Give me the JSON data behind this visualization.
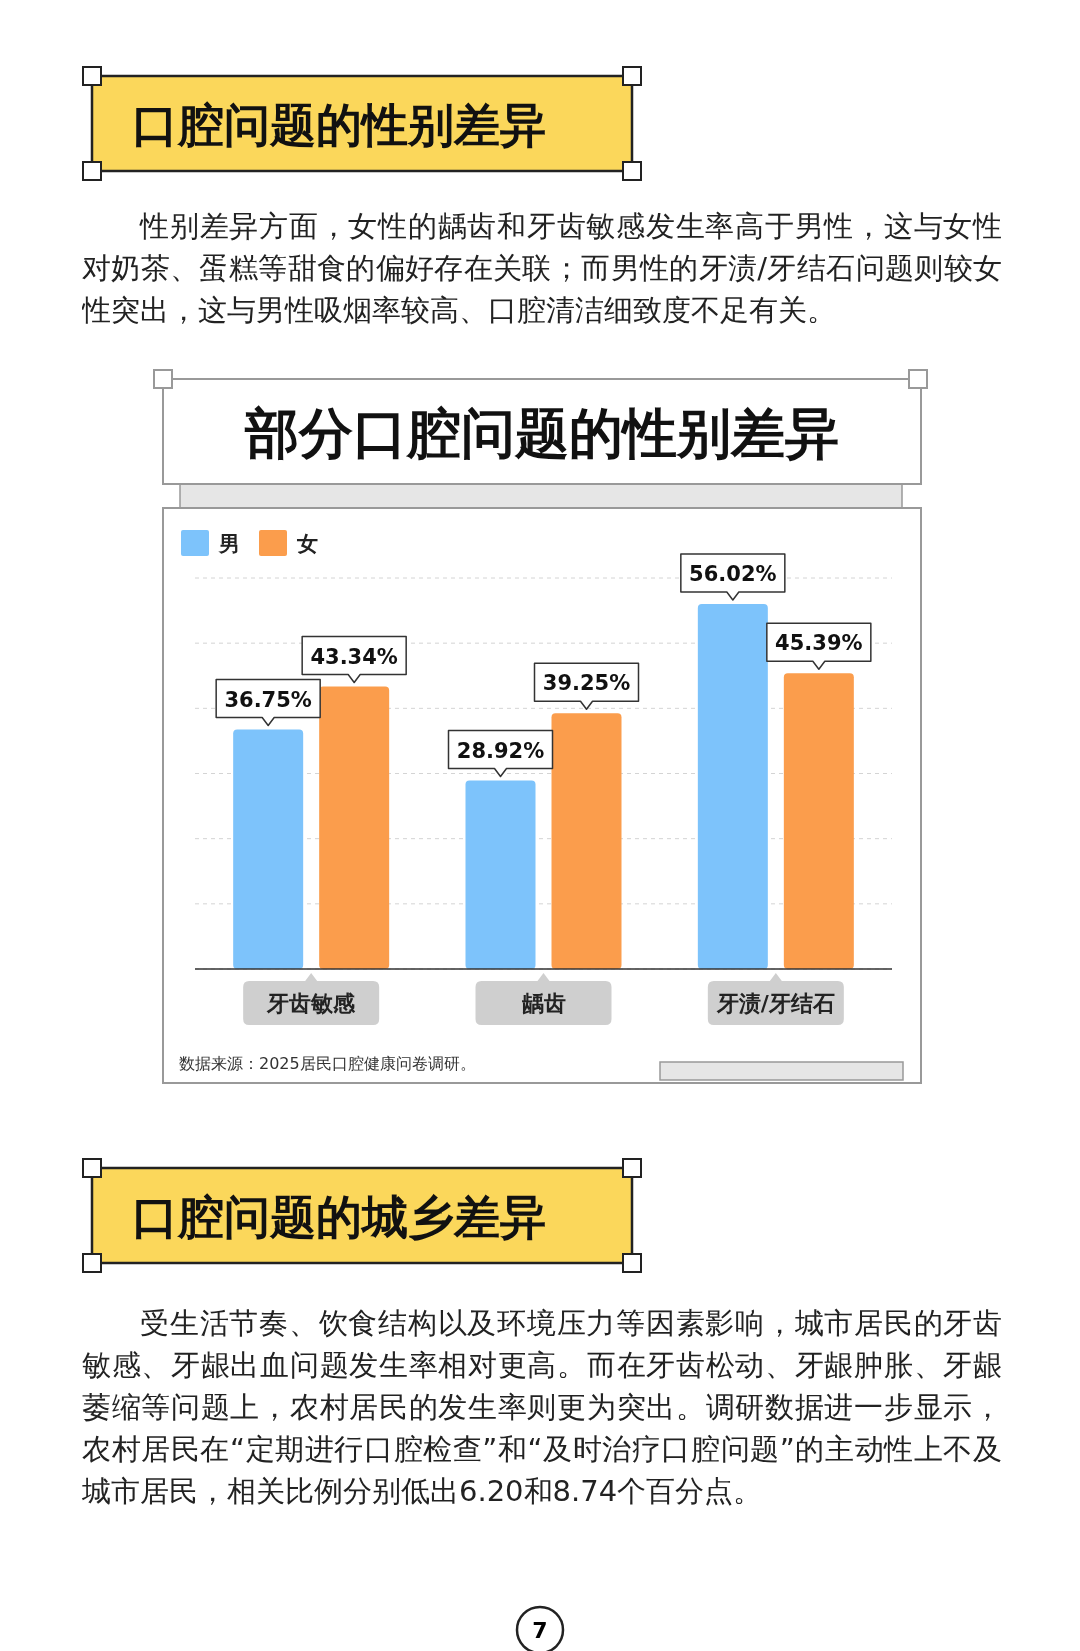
{
  "chart_data": {
    "type": "bar",
    "title": "部分口腔问题的性别差异",
    "categories": [
      "牙齿敏感",
      "龋齿",
      "牙渍/牙结石"
    ],
    "series": [
      {
        "name": "男",
        "color": "#7dc3fb",
        "values": [
          36.75,
          28.92,
          56.02
        ],
        "value_labels": [
          "36.75%",
          "28.92%",
          "56.02%"
        ]
      },
      {
        "name": "女",
        "color": "#fb9d4c",
        "values": [
          43.34,
          39.25,
          45.39
        ],
        "value_labels": [
          "43.34%",
          "39.25%",
          "45.39%"
        ]
      }
    ],
    "ylim": [
      0,
      60
    ],
    "yticks": [
      {
        "value": 0,
        "label": null
      },
      {
        "value": 10,
        "label": null
      },
      {
        "value": 20,
        "label": null
      },
      {
        "value": 30,
        "label": null
      },
      {
        "value": 40,
        "label": null
      },
      {
        "value": 50,
        "label": null
      },
      {
        "value": 60,
        "label": null
      }
    ],
    "tick_labels": "x",
    "grid": "y",
    "legend": "top left",
    "annotations": [
      "口腔问题的性别差异",
      "性别差异方面，女性的龋齿和牙齿敏感发生率高于男性，这与女性对奶茶、蛋糕等甜食的偏好存在关联；而男性的牙渍/牙结石问题则较女性突出，这与男性吸烟率较高、口腔清洁细致度不足有关。",
      "数据来源：2025居民口腔健康问卷调研。",
      "口腔问题的城乡差异",
      "受生活节奏、饮食结构以及环境压力等因素影响，城市居民的牙齿敏感、牙龈出血问题发生率相对更高。而在牙齿松动、牙龈肿胀、牙龈萎缩等问题上，农村居民的发生率则更为突出。调研数据进一步显示，农村居民在“定期进行口腔检查”和“及时治疗口腔问题”的主动性上不及城市居民，相关比例分别低出6.20和8.74个百分点。",
      "7"
    ]
  }
}
